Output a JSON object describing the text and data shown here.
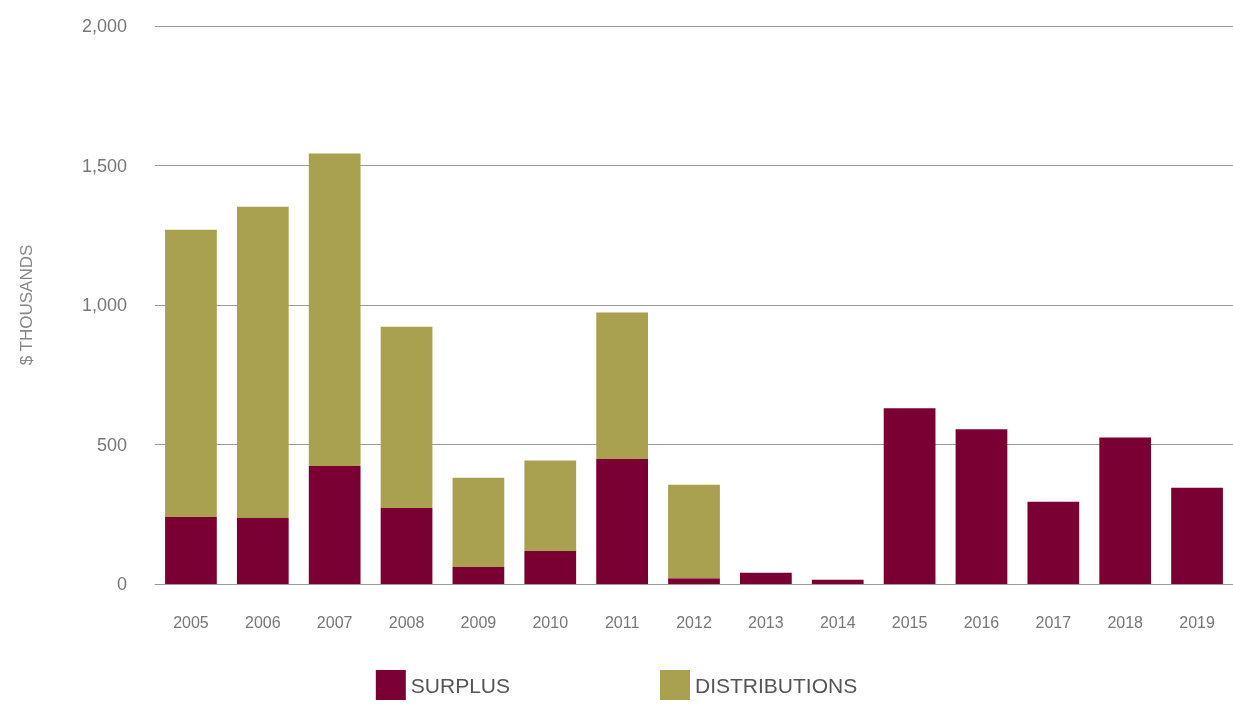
{
  "chart_data": {
    "type": "bar",
    "stacked": true,
    "ylabel": "$ THOUSANDS",
    "categories": [
      "2005",
      "2006",
      "2007",
      "2008",
      "2009",
      "2010",
      "2011",
      "2012",
      "2013",
      "2014",
      "2015",
      "2016",
      "2017",
      "2018",
      "2019"
    ],
    "series": [
      {
        "name": "SURPLUS",
        "color": "#7a0033",
        "values": [
          240,
          237,
          423,
          272,
          61,
          118,
          448,
          21,
          40,
          15,
          630,
          555,
          295,
          525,
          345
        ]
      },
      {
        "name": "DISTRIBUTIONS",
        "color": "#a9a050",
        "values": [
          1030,
          1115,
          1120,
          650,
          320,
          325,
          525,
          335,
          null,
          null,
          null,
          null,
          null,
          null,
          null
        ]
      }
    ],
    "ylim": [
      0,
      2000
    ],
    "yticks": [
      {
        "value": 0,
        "label": "0"
      },
      {
        "value": 500,
        "label": "500"
      },
      {
        "value": 1000,
        "label": "1,000"
      },
      {
        "value": 1500,
        "label": "1,500"
      },
      {
        "value": 2000,
        "label": "2,000"
      }
    ],
    "grid": "y",
    "legend": "bottom"
  }
}
